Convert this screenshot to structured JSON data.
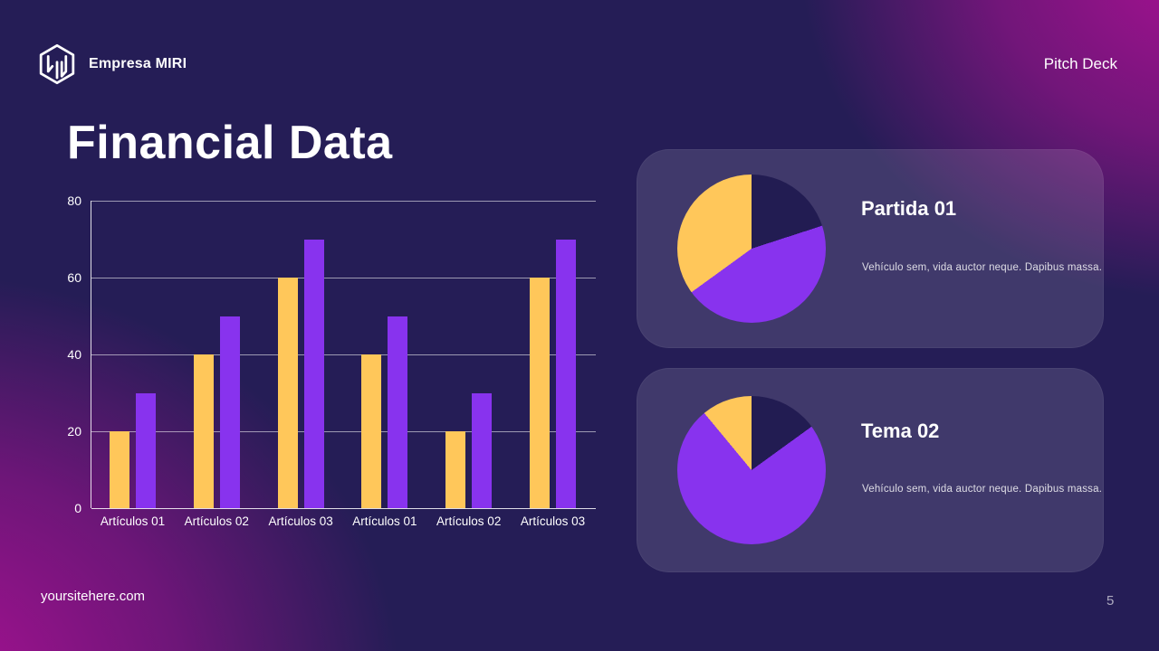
{
  "header": {
    "company": "Empresa MIRI",
    "right_label": "Pitch Deck"
  },
  "title": "Financial Data",
  "footer": {
    "website": "yoursitehere.com",
    "page_number": "5"
  },
  "colors": {
    "background": "#251D56",
    "magenta_glow": "#B01096",
    "bar_yellow": "#FFC75A",
    "bar_purple": "#8833EE",
    "pie_navy": "#221C52",
    "card_bg": "rgba(255,255,255,0.125)"
  },
  "chart_data": [
    {
      "type": "bar",
      "categories": [
        "Artículos 01",
        "Artículos 02",
        "Artículos 03",
        "Artículos 01",
        "Artículos 02",
        "Artículos 03"
      ],
      "series": [
        {
          "name": "yellow-series",
          "color": "#FFC75A",
          "values": [
            20,
            40,
            60,
            40,
            20,
            60
          ]
        },
        {
          "name": "purple-series",
          "color": "#8833EE",
          "values": [
            30,
            50,
            70,
            50,
            30,
            70
          ]
        }
      ],
      "title": "",
      "xlabel": "",
      "ylabel": "",
      "ylim": [
        0,
        80
      ],
      "yticks": [
        0,
        20,
        40,
        60,
        80
      ],
      "grid": true,
      "legend": false
    },
    {
      "type": "pie",
      "title": "Partida 01",
      "description": "Vehículo sem, vida auctor neque. Dapibus massa.",
      "slices": [
        {
          "label": "navy",
          "color": "#221C52",
          "value": 20
        },
        {
          "label": "purple",
          "color": "#8833EE",
          "value": 45
        },
        {
          "label": "yellow",
          "color": "#FFC75A",
          "value": 35
        }
      ]
    },
    {
      "type": "pie",
      "title": "Tema 02",
      "description": "Vehículo sem, vida auctor neque. Dapibus massa.",
      "slices": [
        {
          "label": "navy",
          "color": "#221C52",
          "value": 15
        },
        {
          "label": "purple",
          "color": "#8833EE",
          "value": 74
        },
        {
          "label": "yellow",
          "color": "#FFC75A",
          "value": 11
        }
      ]
    }
  ]
}
